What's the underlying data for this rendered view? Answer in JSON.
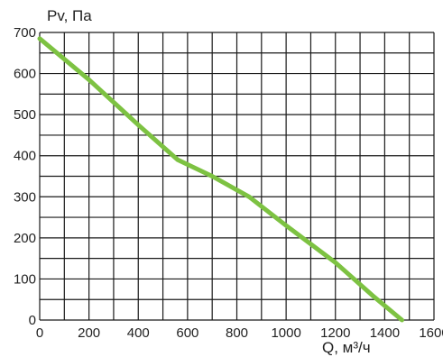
{
  "chart_data": {
    "type": "line",
    "title": "",
    "ylabel": "Pv, Па",
    "xlabel": "Q, м³/ч",
    "xlim": [
      0,
      1600
    ],
    "ylim": [
      0,
      700
    ],
    "x_ticks": [
      0,
      200,
      400,
      600,
      800,
      1000,
      1200,
      1400,
      1600
    ],
    "y_ticks": [
      0,
      100,
      200,
      300,
      400,
      500,
      600,
      700
    ],
    "x_grid_step": 100,
    "y_grid_step": 50,
    "grid": true,
    "series": [
      {
        "color": "#7dc242",
        "x": [
          0,
          200,
          400,
          560,
          700,
          850,
          1000,
          1200,
          1350,
          1470
        ],
        "y": [
          685,
          585,
          475,
          390,
          350,
          300,
          230,
          140,
          60,
          0
        ]
      }
    ]
  }
}
